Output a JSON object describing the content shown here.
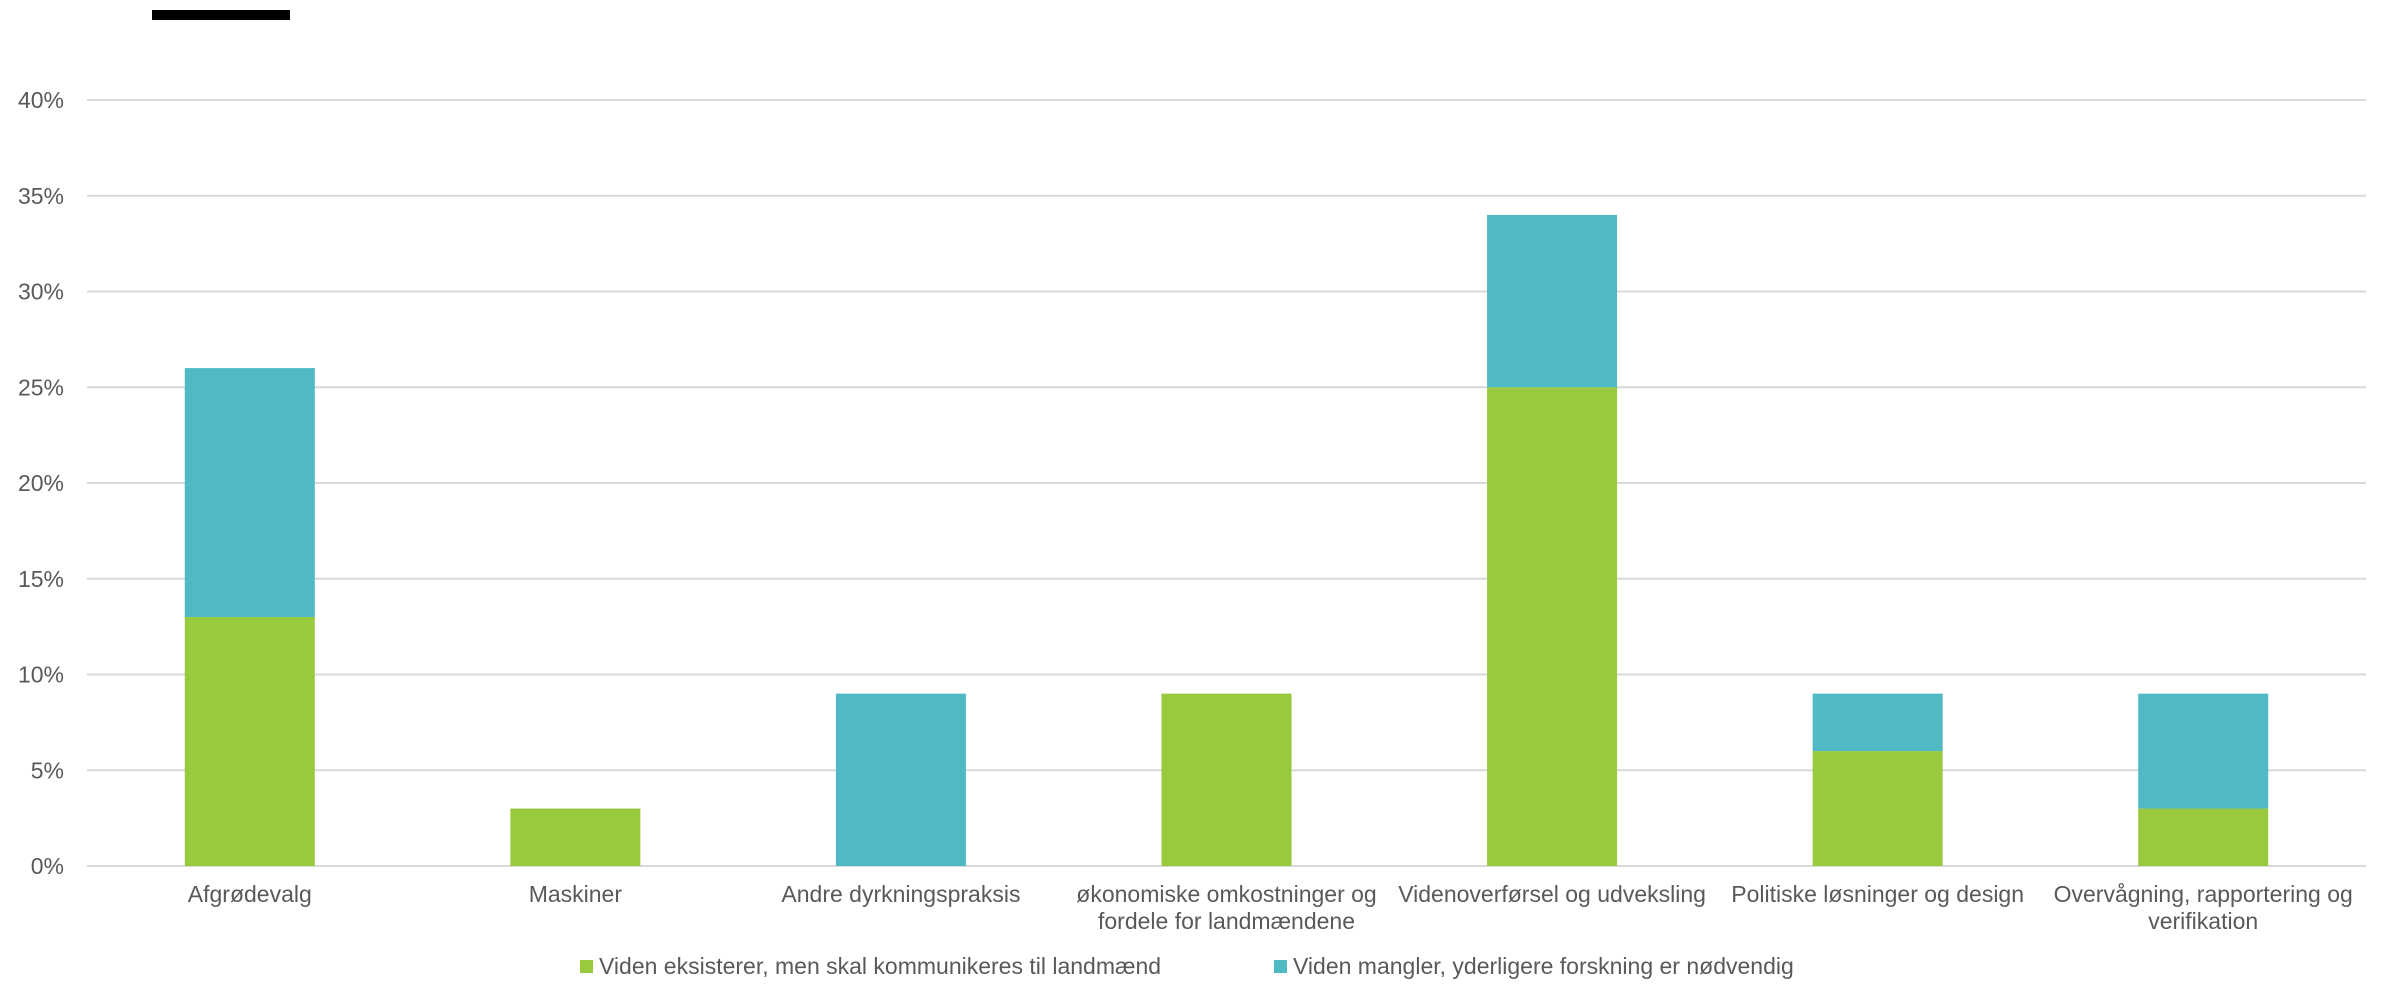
{
  "chart_data": {
    "type": "bar",
    "stacked": true,
    "title": "",
    "xlabel": "",
    "ylabel": "",
    "ylim": [
      0,
      40
    ],
    "yticks": [
      "0%",
      "5%",
      "10%",
      "15%",
      "20%",
      "25%",
      "30%",
      "35%",
      "40%"
    ],
    "grid": true,
    "legend_position": "bottom",
    "categories": [
      [
        "Afgrødevalg"
      ],
      [
        "Maskiner"
      ],
      [
        "Andre dyrkningspraksis"
      ],
      [
        "økonomiske omkostninger og",
        "fordele for landmændene"
      ],
      [
        "Videnoverførsel og udveksling"
      ],
      [
        "Politiske løsninger og design"
      ],
      [
        "Overvågning, rapportering og",
        "verifikation"
      ]
    ],
    "series": [
      {
        "name": "Viden eksisterer, men skal kommunikeres til landmænd",
        "color": "#99c93c",
        "values": [
          13,
          3,
          0,
          9,
          25,
          6,
          3
        ]
      },
      {
        "name": "Viden mangler, yderligere  forskning er nødvendig",
        "color": "#4fbac4",
        "values": [
          13,
          0,
          9,
          0,
          9,
          3,
          6
        ]
      }
    ]
  }
}
